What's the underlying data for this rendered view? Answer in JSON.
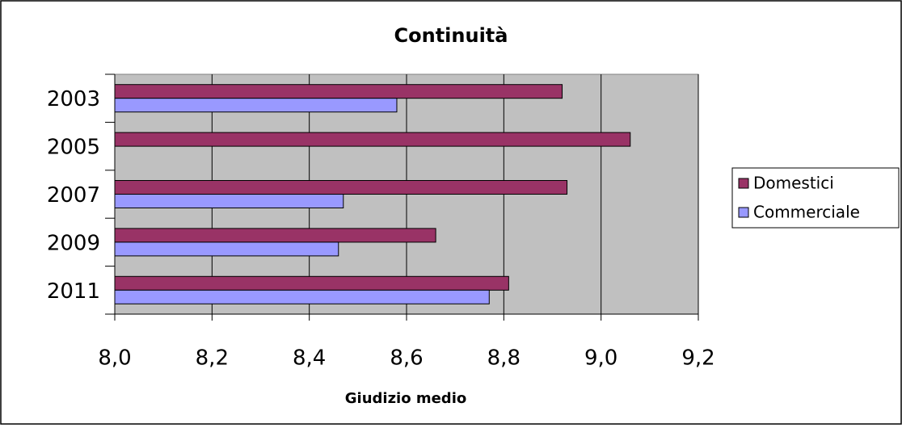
{
  "chart_data": {
    "type": "bar",
    "orientation": "horizontal",
    "title": "Continuità",
    "x_label": "Giudizio medio",
    "categories": [
      "2003",
      "2005",
      "2007",
      "2009",
      "2011"
    ],
    "series": [
      {
        "name": "Domestici",
        "color": "#993366",
        "values": [
          8.92,
          9.06,
          8.93,
          8.66,
          8.81
        ]
      },
      {
        "name": "Commerciale",
        "color": "#9999ff",
        "values": [
          8.58,
          null,
          8.47,
          8.46,
          8.77
        ]
      }
    ],
    "xlim": [
      8,
      9.2
    ],
    "xticks": [
      {
        "value": 8,
        "label": "8,0"
      },
      {
        "value": 8.2,
        "label": "8,2"
      },
      {
        "value": 8.4,
        "label": "8,4"
      },
      {
        "value": 8.6,
        "label": "8,6"
      },
      {
        "value": 8.8,
        "label": "8,8"
      },
      {
        "value": 9,
        "label": "9,0"
      },
      {
        "value": 9.2,
        "label": "9,2"
      }
    ],
    "grid": true,
    "legend": "right"
  }
}
